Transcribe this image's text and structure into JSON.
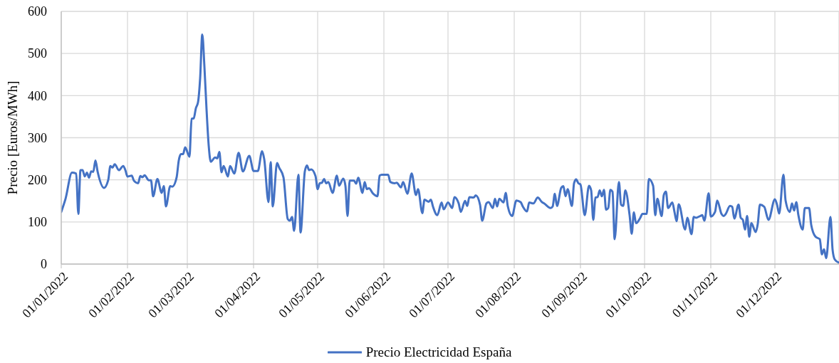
{
  "chart_data": {
    "type": "line",
    "ylabel": "Precio [Euros/MWh]",
    "x": [
      "2022-01-01",
      "2022-01-03",
      "2022-01-06",
      "2022-01-08",
      "2022-01-09",
      "2022-01-10",
      "2022-01-11",
      "2022-01-12",
      "2022-01-13",
      "2022-01-14",
      "2022-01-15",
      "2022-01-16",
      "2022-01-17",
      "2022-01-18",
      "2022-01-21",
      "2022-01-23",
      "2022-01-24",
      "2022-01-25",
      "2022-01-26",
      "2022-01-28",
      "2022-01-30",
      "2022-01-31",
      "2022-02-01",
      "2022-02-03",
      "2022-02-04",
      "2022-02-06",
      "2022-02-07",
      "2022-02-08",
      "2022-02-09",
      "2022-02-11",
      "2022-02-12",
      "2022-02-13",
      "2022-02-15",
      "2022-02-17",
      "2022-02-18",
      "2022-02-19",
      "2022-02-21",
      "2022-02-22",
      "2022-02-24",
      "2022-02-25",
      "2022-02-26",
      "2022-02-27",
      "2022-02-28",
      "2022-03-02",
      "2022-03-03",
      "2022-03-04",
      "2022-03-05",
      "2022-03-06",
      "2022-03-07",
      "2022-03-08",
      "2022-03-09",
      "2022-03-10",
      "2022-03-11",
      "2022-03-12",
      "2022-03-14",
      "2022-03-15",
      "2022-03-16",
      "2022-03-17",
      "2022-03-18",
      "2022-03-20",
      "2022-03-21",
      "2022-03-23",
      "2022-03-25",
      "2022-03-27",
      "2022-03-30",
      "2022-04-01",
      "2022-04-03",
      "2022-04-05",
      "2022-04-06",
      "2022-04-08",
      "2022-04-09",
      "2022-04-10",
      "2022-04-12",
      "2022-04-13",
      "2022-04-15",
      "2022-04-17",
      "2022-04-18",
      "2022-04-19",
      "2022-04-20",
      "2022-04-22",
      "2022-04-23",
      "2022-04-25",
      "2022-04-26",
      "2022-04-27",
      "2022-04-28",
      "2022-04-30",
      "2022-05-01",
      "2022-05-02",
      "2022-05-03",
      "2022-05-04",
      "2022-05-05",
      "2022-05-06",
      "2022-05-08",
      "2022-05-10",
      "2022-05-11",
      "2022-05-13",
      "2022-05-14",
      "2022-05-15",
      "2022-05-16",
      "2022-05-18",
      "2022-05-19",
      "2022-05-20",
      "2022-05-22",
      "2022-05-23",
      "2022-05-24",
      "2022-05-25",
      "2022-05-27",
      "2022-05-29",
      "2022-05-30",
      "2022-05-31",
      "2022-06-03",
      "2022-06-04",
      "2022-06-06",
      "2022-06-07",
      "2022-06-09",
      "2022-06-10",
      "2022-06-12",
      "2022-06-14",
      "2022-06-16",
      "2022-06-17",
      "2022-06-19",
      "2022-06-20",
      "2022-06-22",
      "2022-06-23",
      "2022-06-24",
      "2022-06-26",
      "2022-06-28",
      "2022-06-29",
      "2022-07-01",
      "2022-07-03",
      "2022-07-04",
      "2022-07-06",
      "2022-07-07",
      "2022-07-09",
      "2022-07-10",
      "2022-07-11",
      "2022-07-13",
      "2022-07-14",
      "2022-07-16",
      "2022-07-17",
      "2022-07-19",
      "2022-07-20",
      "2022-07-22",
      "2022-07-23",
      "2022-07-24",
      "2022-07-25",
      "2022-07-27",
      "2022-07-28",
      "2022-07-29",
      "2022-07-31",
      "2022-08-02",
      "2022-08-04",
      "2022-08-05",
      "2022-08-07",
      "2022-08-08",
      "2022-08-10",
      "2022-08-12",
      "2022-08-14",
      "2022-08-15",
      "2022-08-18",
      "2022-08-19",
      "2022-08-20",
      "2022-08-21",
      "2022-08-23",
      "2022-08-24",
      "2022-08-25",
      "2022-08-26",
      "2022-08-28",
      "2022-08-29",
      "2022-08-30",
      "2022-08-31",
      "2022-09-01",
      "2022-09-03",
      "2022-09-05",
      "2022-09-06",
      "2022-09-07",
      "2022-09-08",
      "2022-09-09",
      "2022-09-10",
      "2022-09-11",
      "2022-09-12",
      "2022-09-13",
      "2022-09-14",
      "2022-09-15",
      "2022-09-16",
      "2022-09-17",
      "2022-09-19",
      "2022-09-20",
      "2022-09-21",
      "2022-09-22",
      "2022-09-24",
      "2022-09-25",
      "2022-09-26",
      "2022-09-27",
      "2022-09-29",
      "2022-09-30",
      "2022-10-02",
      "2022-10-03",
      "2022-10-05",
      "2022-10-06",
      "2022-10-07",
      "2022-10-09",
      "2022-10-10",
      "2022-10-11",
      "2022-10-12",
      "2022-10-14",
      "2022-10-15",
      "2022-10-16",
      "2022-10-17",
      "2022-10-20",
      "2022-10-21",
      "2022-10-23",
      "2022-10-24",
      "2022-10-25",
      "2022-10-27",
      "2022-10-28",
      "2022-10-29",
      "2022-10-31",
      "2022-11-01",
      "2022-11-03",
      "2022-11-04",
      "2022-11-06",
      "2022-11-07",
      "2022-11-08",
      "2022-11-10",
      "2022-11-11",
      "2022-11-12",
      "2022-11-14",
      "2022-11-15",
      "2022-11-16",
      "2022-11-17",
      "2022-11-18",
      "2022-11-19",
      "2022-11-20",
      "2022-11-22",
      "2022-11-23",
      "2022-11-24",
      "2022-11-26",
      "2022-11-28",
      "2022-12-01",
      "2022-12-02",
      "2022-12-03",
      "2022-12-05",
      "2022-12-06",
      "2022-12-08",
      "2022-12-09",
      "2022-12-10",
      "2022-12-11",
      "2022-12-12",
      "2022-12-14",
      "2022-12-15",
      "2022-12-17",
      "2022-12-18",
      "2022-12-20",
      "2022-12-22",
      "2022-12-23",
      "2022-12-24",
      "2022-12-25",
      "2022-12-27",
      "2022-12-28",
      "2022-12-29",
      "2022-12-31"
    ],
    "series": [
      {
        "name": "Precio Electricidad España",
        "color": "#4472c4",
        "values": [
          124,
          155,
          217,
          215,
          119,
          223,
          223,
          208,
          217,
          205,
          220,
          219,
          246,
          220,
          181,
          200,
          233,
          229,
          237,
          223,
          233,
          223,
          208,
          210,
          198,
          192,
          209,
          206,
          211,
          199,
          199,
          161,
          202,
          169,
          185,
          137,
          185,
          184,
          206,
          246,
          261,
          261,
          277,
          255,
          345,
          346,
          370,
          384,
          441,
          545,
          469,
          367,
          282,
          243,
          253,
          251,
          266,
          218,
          233,
          208,
          233,
          215,
          264,
          220,
          257,
          221,
          221,
          268,
          249,
          147,
          242,
          137,
          240,
          229,
          206,
          107,
          103,
          112,
          79,
          212,
          75,
          220,
          234,
          223,
          225,
          209,
          178,
          192,
          193,
          202,
          192,
          195,
          169,
          210,
          186,
          203,
          186,
          114,
          198,
          198,
          191,
          205,
          169,
          195,
          178,
          180,
          167,
          161,
          210,
          212,
          212,
          195,
          192,
          193,
          182,
          195,
          167,
          215,
          164,
          178,
          121,
          153,
          148,
          153,
          136,
          116,
          146,
          130,
          146,
          133,
          159,
          144,
          124,
          150,
          138,
          159,
          158,
          163,
          141,
          103,
          144,
          147,
          133,
          155,
          137,
          155,
          146,
          169,
          137,
          114,
          151,
          147,
          137,
          125,
          146,
          144,
          158,
          147,
          144,
          133,
          137,
          167,
          138,
          181,
          185,
          161,
          178,
          138,
          192,
          201,
          192,
          189,
          116,
          186,
          175,
          105,
          158,
          159,
          175,
          161,
          176,
          129,
          133,
          176,
          172,
          59,
          195,
          141,
          138,
          175,
          116,
          72,
          123,
          97,
          110,
          119,
          119,
          202,
          186,
          116,
          155,
          114,
          164,
          172,
          133,
          146,
          124,
          102,
          142,
          82,
          110,
          71,
          112,
          110,
          114,
          116,
          103,
          168,
          113,
          124,
          151,
          119,
          114,
          119,
          138,
          136,
          108,
          141,
          110,
          105,
          82,
          114,
          65,
          97,
          76,
          96,
          141,
          136,
          105,
          154,
          141,
          120,
          212,
          151,
          124,
          144,
          127,
          147,
          116,
          82,
          133,
          133,
          93,
          65,
          59,
          23,
          35,
          14,
          112,
          34,
          11,
          3
        ]
      }
    ],
    "xlim": [
      "2022-01-01",
      "2022-12-31"
    ],
    "xticks": [
      {
        "value": "2022-01-01",
        "label": "01/01/2022"
      },
      {
        "value": "2022-02-01",
        "label": "01/02/2022"
      },
      {
        "value": "2022-03-01",
        "label": "01/03/2022"
      },
      {
        "value": "2022-04-01",
        "label": "01/04/2022"
      },
      {
        "value": "2022-05-01",
        "label": "01/05/2022"
      },
      {
        "value": "2022-06-01",
        "label": "01/06/2022"
      },
      {
        "value": "2022-07-01",
        "label": "01/07/2022"
      },
      {
        "value": "2022-08-01",
        "label": "01/08/2022"
      },
      {
        "value": "2022-09-01",
        "label": "01/09/2022"
      },
      {
        "value": "2022-10-01",
        "label": "01/10/2022"
      },
      {
        "value": "2022-11-01",
        "label": "01/11/2022"
      },
      {
        "value": "2022-12-01",
        "label": "01/12/2022"
      }
    ],
    "ylim": [
      0,
      600
    ],
    "yticks": [
      0,
      100,
      200,
      300,
      400,
      500,
      600
    ],
    "grid": true,
    "legend": "bottom"
  }
}
